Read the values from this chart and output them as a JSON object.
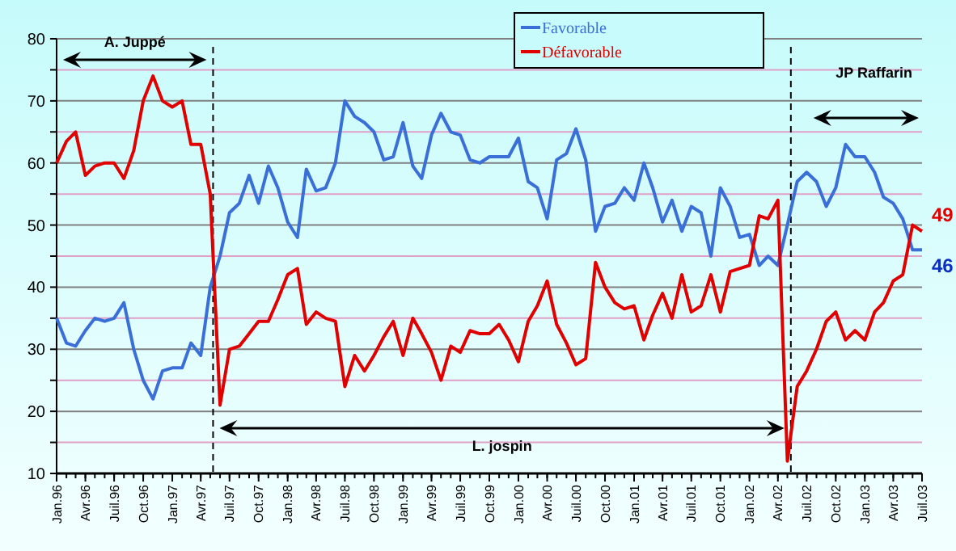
{
  "chart_data": {
    "type": "line",
    "x": [
      "1996-01",
      "1996-02",
      "1996-03",
      "1996-04",
      "1996-05",
      "1996-06",
      "1996-07",
      "1996-08",
      "1996-09",
      "1996-10",
      "1996-11",
      "1996-12",
      "1997-01",
      "1997-02",
      "1997-03",
      "1997-04",
      "1997-05",
      "1997-06",
      "1997-07",
      "1997-08",
      "1997-09",
      "1997-10",
      "1997-11",
      "1997-12",
      "1998-01",
      "1998-02",
      "1998-03",
      "1998-04",
      "1998-05",
      "1998-06",
      "1998-07",
      "1998-08",
      "1998-09",
      "1998-10",
      "1998-11",
      "1998-12",
      "1999-01",
      "1999-02",
      "1999-03",
      "1999-04",
      "1999-05",
      "1999-06",
      "1999-07",
      "1999-08",
      "1999-09",
      "1999-10",
      "1999-11",
      "1999-12",
      "2000-01",
      "2000-02",
      "2000-03",
      "2000-04",
      "2000-05",
      "2000-06",
      "2000-07",
      "2000-08",
      "2000-09",
      "2000-10",
      "2000-11",
      "2000-12",
      "2001-01",
      "2001-02",
      "2001-03",
      "2001-04",
      "2001-05",
      "2001-06",
      "2001-07",
      "2001-08",
      "2001-09",
      "2001-10",
      "2001-11",
      "2001-12",
      "2002-01",
      "2002-02",
      "2002-03",
      "2002-04",
      "2002-05",
      "2002-06",
      "2002-07",
      "2002-08",
      "2002-09",
      "2002-10",
      "2002-11",
      "2002-12",
      "2003-01",
      "2003-02",
      "2003-03",
      "2003-04",
      "2003-05",
      "2003-06",
      "2003-07"
    ],
    "series": [
      {
        "name": "Favorable",
        "color": "#3a6fd8",
        "values": [
          35,
          31,
          30.5,
          33,
          35,
          34.5,
          35,
          37.5,
          30,
          25,
          22,
          26.5,
          27,
          27,
          31,
          29,
          40,
          45,
          52,
          53.5,
          58,
          53.5,
          59.5,
          56,
          50.5,
          48,
          59,
          55.5,
          56,
          60,
          70,
          67.5,
          66.5,
          65,
          60.5,
          61,
          66.5,
          59.5,
          57.5,
          64.5,
          68,
          65,
          64.5,
          60.5,
          60,
          61,
          61,
          61,
          64,
          57,
          56,
          51,
          60.5,
          61.5,
          65.5,
          60.5,
          49,
          53,
          53.5,
          56,
          54,
          60,
          56,
          50.5,
          54,
          49,
          53,
          52,
          45,
          56,
          53,
          48,
          48.5,
          43.5,
          45,
          43.5,
          50,
          57,
          58.5,
          57,
          53,
          56,
          63,
          61,
          61,
          58.5,
          54.5,
          53.5,
          51,
          46,
          46
        ],
        "value_labels": [
          null,
          null,
          null,
          null,
          null,
          null,
          null,
          null,
          null,
          null,
          null,
          null,
          null,
          null,
          null,
          null,
          null,
          null,
          null,
          null,
          null,
          null,
          null,
          null,
          null,
          null,
          null,
          null,
          null,
          null,
          null,
          null,
          null,
          null,
          null,
          null,
          null,
          null,
          null,
          null,
          null,
          null,
          null,
          null,
          null,
          null,
          null,
          null,
          null,
          null,
          null,
          null,
          null,
          null,
          null,
          null,
          null,
          null,
          null,
          null,
          null,
          null,
          null,
          null,
          null,
          null,
          null,
          null,
          null,
          null,
          null,
          null,
          null,
          null,
          null,
          null,
          null,
          null,
          null,
          null,
          null,
          null,
          null,
          null,
          null,
          null,
          null,
          null,
          null,
          null,
          "46"
        ]
      },
      {
        "name": "Défavorable",
        "color": "#e00000",
        "values": [
          60,
          63.5,
          65,
          58,
          59.5,
          60,
          60,
          57.5,
          62,
          70,
          74,
          70,
          69,
          70,
          63,
          63,
          55,
          21,
          30,
          30.5,
          32.5,
          34.5,
          34.5,
          38,
          42,
          43,
          34,
          36,
          35,
          34.5,
          24,
          29,
          26.5,
          29,
          32,
          34.5,
          29,
          35,
          32.5,
          29.5,
          25,
          30.5,
          29.5,
          33,
          32.5,
          32.5,
          34,
          31.5,
          28,
          34.5,
          37,
          41,
          34,
          31,
          27.5,
          28.5,
          44,
          40,
          37.5,
          36.5,
          37,
          31.5,
          35.5,
          39,
          35,
          42,
          36,
          37,
          42,
          36,
          42.5,
          43,
          43.5,
          51.5,
          51,
          54,
          12,
          24,
          26.5,
          30,
          34.5,
          36,
          31.5,
          33,
          31.5,
          36,
          37.5,
          41,
          42,
          50,
          49
        ],
        "value_labels": [
          null,
          null,
          null,
          null,
          null,
          null,
          null,
          null,
          null,
          null,
          null,
          null,
          null,
          null,
          null,
          null,
          null,
          null,
          null,
          null,
          null,
          null,
          null,
          null,
          null,
          null,
          null,
          null,
          null,
          null,
          null,
          null,
          null,
          null,
          null,
          null,
          null,
          null,
          null,
          null,
          null,
          null,
          null,
          null,
          null,
          null,
          null,
          null,
          null,
          null,
          null,
          null,
          null,
          null,
          null,
          null,
          null,
          null,
          null,
          null,
          null,
          null,
          null,
          null,
          null,
          null,
          null,
          null,
          null,
          null,
          null,
          null,
          null,
          null,
          null,
          null,
          null,
          null,
          null,
          null,
          null,
          null,
          null,
          null,
          null,
          null,
          null,
          null,
          null,
          null,
          "49"
        ]
      }
    ],
    "xlim": [
      "1996-01",
      "2003-07"
    ],
    "xticks": [
      {
        "value": "1996-01",
        "label": "Jan.96"
      },
      {
        "value": "1996-04",
        "label": "Avr.96"
      },
      {
        "value": "1996-07",
        "label": "Juil.96"
      },
      {
        "value": "1996-10",
        "label": "Oct.96"
      },
      {
        "value": "1997-01",
        "label": "Jan.97"
      },
      {
        "value": "1997-04",
        "label": "Avr.97"
      },
      {
        "value": "1997-07",
        "label": "Juil.97"
      },
      {
        "value": "1997-10",
        "label": "Oct.97"
      },
      {
        "value": "1998-01",
        "label": "Jan.98"
      },
      {
        "value": "1998-04",
        "label": "Avr.98"
      },
      {
        "value": "1998-07",
        "label": "Juil.98"
      },
      {
        "value": "1998-10",
        "label": "Oct.98"
      },
      {
        "value": "1999-01",
        "label": "Jan.99"
      },
      {
        "value": "1999-04",
        "label": "Avr.99"
      },
      {
        "value": "1999-07",
        "label": "Juil.99"
      },
      {
        "value": "1999-10",
        "label": "Oct.99"
      },
      {
        "value": "2000-01",
        "label": "Jan.00"
      },
      {
        "value": "2000-04",
        "label": "Avr.00"
      },
      {
        "value": "2000-07",
        "label": "Juil.00"
      },
      {
        "value": "2000-10",
        "label": "Oct.00"
      },
      {
        "value": "2001-01",
        "label": "Jan.01"
      },
      {
        "value": "2001-04",
        "label": "Avr.01"
      },
      {
        "value": "2001-07",
        "label": "Juil.01"
      },
      {
        "value": "2001-10",
        "label": "Oct.01"
      },
      {
        "value": "2002-01",
        "label": "Jan.02"
      },
      {
        "value": "2002-04",
        "label": "Avr.02"
      },
      {
        "value": "2002-07",
        "label": "Juil.02"
      },
      {
        "value": "2002-10",
        "label": "Oct.02"
      },
      {
        "value": "2003-01",
        "label": "Jan.03"
      },
      {
        "value": "2003-04",
        "label": "Avr.03"
      },
      {
        "value": "2003-07",
        "label": "Juil.03"
      }
    ],
    "ylim": [
      10,
      80
    ],
    "yticks": [
      10,
      {
        "value": 15,
        "label": null
      },
      20,
      {
        "value": 25,
        "label": null
      },
      30,
      {
        "value": 35,
        "label": null
      },
      40,
      {
        "value": 45,
        "label": null
      },
      50,
      {
        "value": 55,
        "label": null
      },
      60,
      {
        "value": 65,
        "label": null
      },
      70,
      {
        "value": 75,
        "label": null
      },
      80
    ],
    "ref_lines": [
      {
        "axis": "x",
        "value": "1997-05-10",
        "line_style": "dashed"
      },
      {
        "axis": "x",
        "value": "2002-05-12",
        "line_style": "dashed"
      }
    ],
    "annotations": [
      "A. Juppé",
      "L. jospin",
      "JP Raffarin"
    ],
    "grid": "y",
    "legend": "top",
    "marker": "none",
    "line_style": "solid"
  }
}
